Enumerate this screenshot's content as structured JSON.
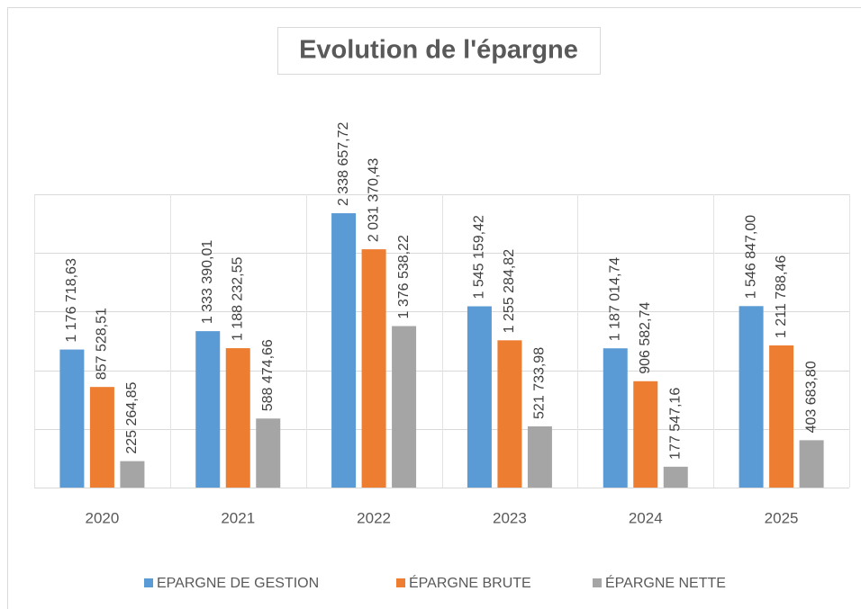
{
  "chart_data": {
    "type": "bar",
    "title": "Evolution de l'épargne",
    "categories": [
      "2020",
      "2021",
      "2022",
      "2023",
      "2024",
      "2025"
    ],
    "series": [
      {
        "name": "EPARGNE DE GESTION",
        "color": "#5b9bd5",
        "values": [
          1176718.63,
          1333390.01,
          2338657.72,
          1545159.42,
          1187014.74,
          1546847.0
        ],
        "value_labels": [
          "1 176 718,63",
          "1 333 390,01",
          "2 338 657,72",
          "1 545 159,42",
          "1 187 014,74",
          "1 546 847,00"
        ]
      },
      {
        "name": "ÉPARGNE BRUTE",
        "color": "#ed7d31",
        "values": [
          857528.51,
          1188232.55,
          2031370.43,
          1255284.82,
          906582.74,
          1211788.46
        ],
        "value_labels": [
          "857 528,51",
          "1 188 232,55",
          "2 031 370,43",
          "1 255 284,82",
          "906 582,74",
          "1 211 788,46"
        ]
      },
      {
        "name": "ÉPARGNE NETTE",
        "color": "#a5a5a5",
        "values": [
          225264.85,
          588474.66,
          1376538.22,
          521733.98,
          177547.16,
          403683.8
        ],
        "value_labels": [
          "225 264,85",
          "588 474,66",
          "1 376 538,22",
          "521 733,98",
          "177 547,16",
          "403 683,80"
        ]
      }
    ],
    "ylim": [
      0,
      2500000
    ],
    "yticks": [
      0,
      500000,
      1000000,
      1500000,
      2000000,
      2500000
    ],
    "grid": true,
    "legend": "bottom"
  }
}
